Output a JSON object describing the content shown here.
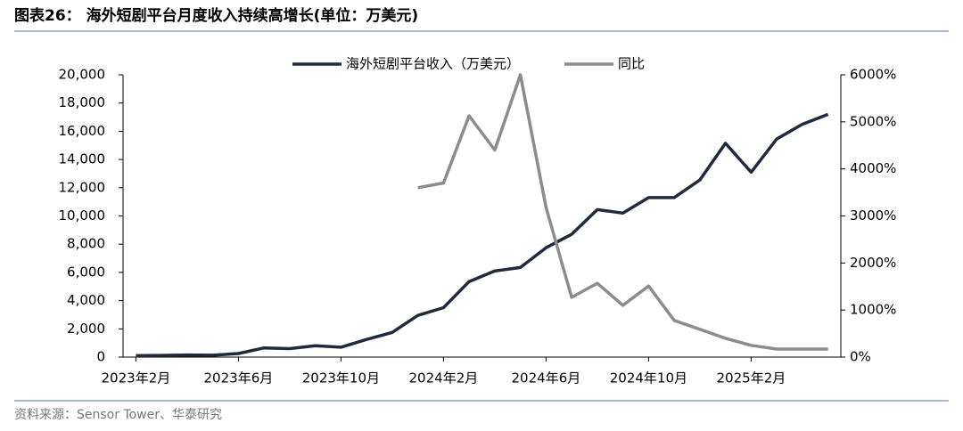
{
  "chart_data": {
    "type": "line",
    "title": "图表26： 海外短剧平台月度收入持续高增长(单位：万美元)",
    "source": "资料来源：Sensor Tower、华泰研究",
    "categories": [
      "2023年2月",
      null,
      null,
      null,
      "2023年6月",
      null,
      null,
      null,
      "2023年10月",
      null,
      null,
      null,
      "2024年2月",
      null,
      null,
      null,
      "2024年6月",
      null,
      null,
      null,
      "2024年10月",
      null,
      null,
      null,
      "2025年2月",
      null,
      null,
      null
    ],
    "series": [
      {
        "name": "海外短剧平台收入（万美元）",
        "color": "#1f2a3c",
        "values": [
          100,
          120,
          150,
          130,
          250,
          650,
          600,
          800,
          700,
          1250,
          1750,
          2950,
          3500,
          5350,
          6100,
          6350,
          7750,
          8700,
          10450,
          10200,
          11300,
          11300,
          12550,
          15150,
          13100,
          15450,
          16500,
          17200
        ]
      },
      {
        "name": "同比",
        "color": "#8c8c8c",
        "axis": "y2",
        "values": [
          null,
          null,
          null,
          null,
          null,
          null,
          null,
          null,
          null,
          null,
          null,
          3600,
          3700,
          5130,
          4400,
          6000,
          3180,
          1270,
          1570,
          1100,
          1510,
          780,
          590,
          400,
          250,
          170,
          170,
          170
        ]
      }
    ],
    "ylim": [
      0,
      20000
    ],
    "yticks": [
      0,
      {
        "value": 2000,
        "label": "2,000"
      },
      {
        "value": 4000,
        "label": "4,000"
      },
      {
        "value": 6000,
        "label": "6,000"
      },
      {
        "value": 8000,
        "label": "8,000"
      },
      {
        "value": 10000,
        "label": "10,000"
      },
      {
        "value": 12000,
        "label": "12,000"
      },
      {
        "value": 14000,
        "label": "14,000"
      },
      {
        "value": 16000,
        "label": "16,000"
      },
      {
        "value": 18000,
        "label": "18,000"
      },
      {
        "value": 20000,
        "label": "20,000"
      }
    ],
    "y2lim": [
      0,
      6000
    ],
    "y2ticks": [
      {
        "value": 0,
        "label": "0%"
      },
      {
        "value": 1000,
        "label": "1000%"
      },
      {
        "value": 2000,
        "label": "2000%"
      },
      {
        "value": 3000,
        "label": "3000%"
      },
      {
        "value": 4000,
        "label": "4000%"
      },
      {
        "value": 5000,
        "label": "5000%"
      },
      {
        "value": 6000,
        "label": "6000%"
      }
    ],
    "legend": "top"
  }
}
